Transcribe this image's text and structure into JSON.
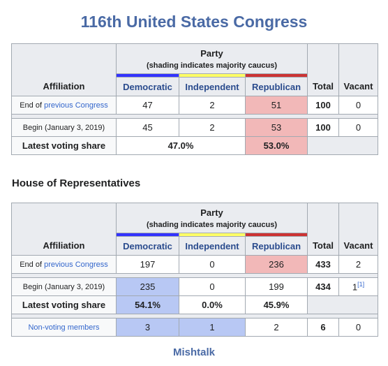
{
  "title": "116th United States Congress",
  "header": {
    "affiliation": "Affiliation",
    "party": "Party",
    "party_note": "(shading indicates majority caucus)",
    "parties": [
      {
        "name": "Democratic",
        "color": "#3333ff"
      },
      {
        "name": "Independent",
        "color": "#ffff66"
      },
      {
        "name": "Republican",
        "color": "#cc3333"
      }
    ],
    "total": "Total",
    "vacant": "Vacant"
  },
  "tables": [
    {
      "rows": [
        {
          "label": "End of",
          "label_link": "previous Congress",
          "cells": [
            {
              "text": "47"
            },
            {
              "text": "2"
            },
            {
              "text": "51",
              "shade": "#f2b8b8"
            },
            {
              "text": "100"
            },
            {
              "text": "0"
            }
          ]
        },
        {
          "label": "Begin (January 3, 2019)",
          "spacer_before": true,
          "cells": [
            {
              "text": "45"
            },
            {
              "text": "2"
            },
            {
              "text": "53",
              "shade": "#f2b8b8"
            },
            {
              "text": "100"
            },
            {
              "text": "0"
            }
          ]
        },
        {
          "label": "Latest voting share",
          "bold": true,
          "cells": [
            {
              "text": "47.0%",
              "span": 2
            },
            {
              "text": "53.0%",
              "shade": "#f2b8b8"
            }
          ]
        }
      ]
    },
    {
      "heading": "House of Representatives",
      "rows": [
        {
          "label": "End of",
          "label_link": "previous Congress",
          "cells": [
            {
              "text": "197"
            },
            {
              "text": "0"
            },
            {
              "text": "236",
              "shade": "#f2b8b8"
            },
            {
              "text": "433"
            },
            {
              "text": "2"
            }
          ]
        },
        {
          "label": "Begin (January 3, 2019)",
          "spacer_before": true,
          "cells": [
            {
              "text": "235",
              "shade": "#b8c8f4"
            },
            {
              "text": "0"
            },
            {
              "text": "199"
            },
            {
              "text": "434"
            },
            {
              "text": "1",
              "note": "[1]"
            }
          ]
        },
        {
          "label": "Latest voting share",
          "bold": true,
          "cells": [
            {
              "text": "54.1%",
              "shade": "#b8c8f4"
            },
            {
              "text": "0.0%"
            },
            {
              "text": "45.9%"
            }
          ]
        },
        {
          "label_link": "Non-voting members",
          "spacer_before": true,
          "cells": [
            {
              "text": "3",
              "shade": "#b8c8f4"
            },
            {
              "text": "1",
              "shade": "#b8c8f4"
            },
            {
              "text": "2"
            },
            {
              "text": "6"
            },
            {
              "text": "0"
            }
          ]
        }
      ]
    }
  ],
  "footer": "Mishtalk"
}
